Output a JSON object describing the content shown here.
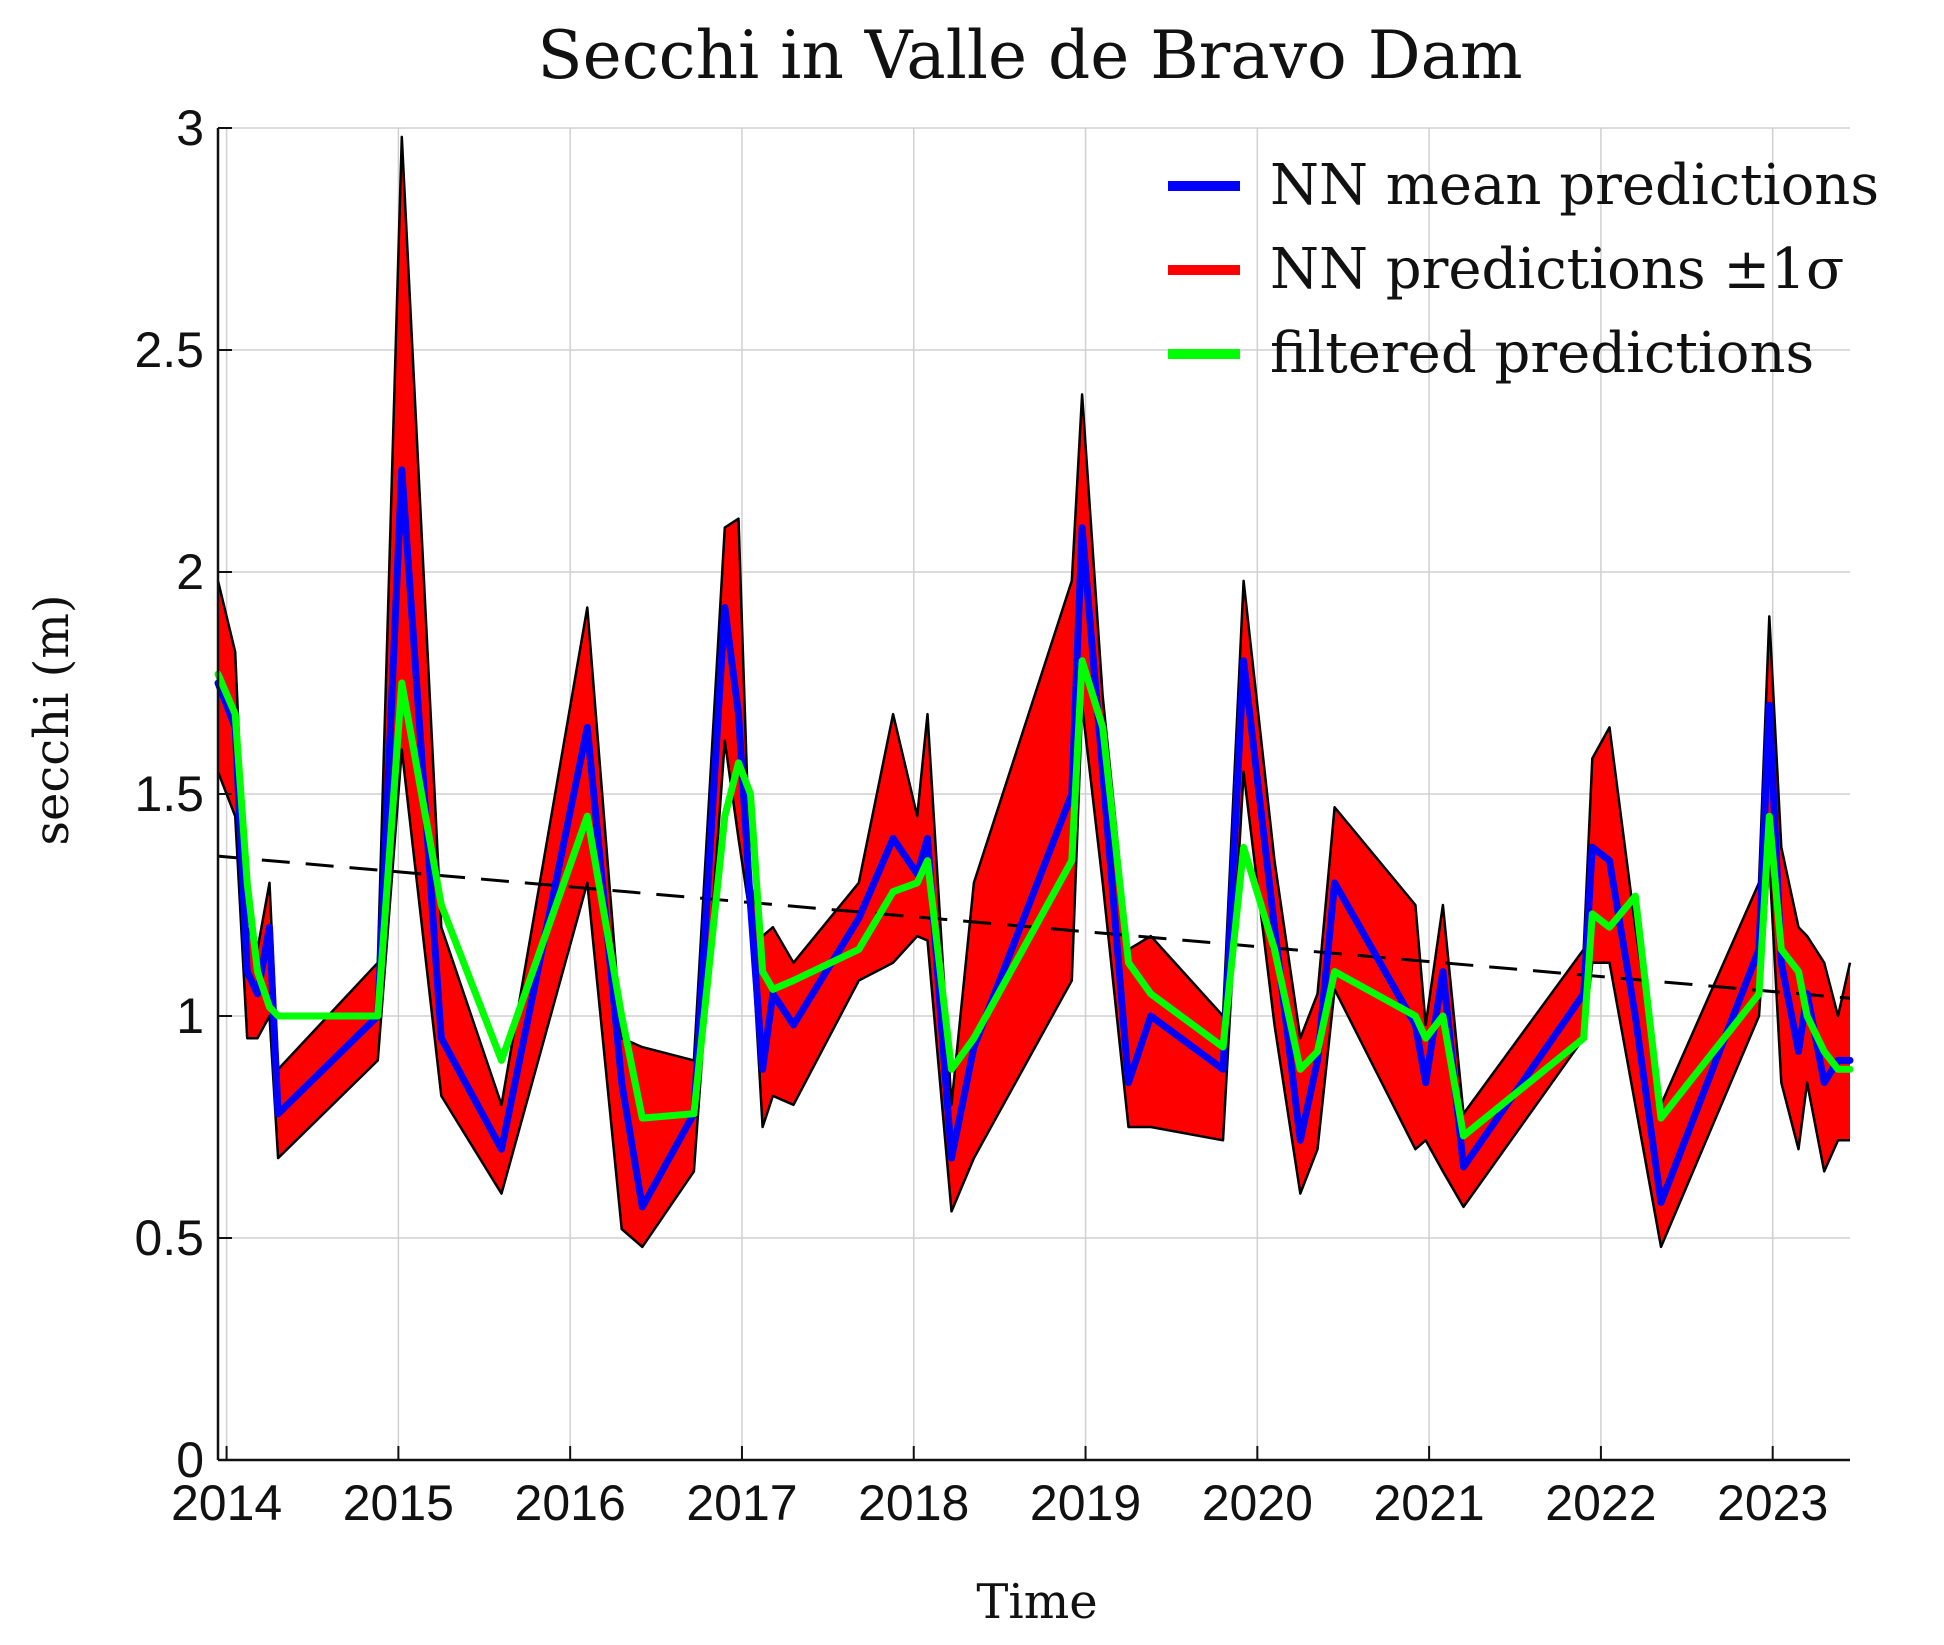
{
  "chart_data": {
    "type": "line",
    "title": "Secchi in Valle de Bravo Dam",
    "xlabel": "Time",
    "ylabel": "secchi (m)",
    "xlim": [
      2013.95,
      2023.45
    ],
    "ylim": [
      0,
      3
    ],
    "x_ticks": [
      2014,
      2015,
      2016,
      2017,
      2018,
      2019,
      2020,
      2021,
      2022,
      2023
    ],
    "x_tick_labels": [
      "2014",
      "2015",
      "2016",
      "2017",
      "2018",
      "2019",
      "2020",
      "2021",
      "2022",
      "2023"
    ],
    "y_ticks": [
      0,
      0.5,
      1,
      1.5,
      2,
      2.5,
      3
    ],
    "y_tick_labels": [
      "0",
      "0.5",
      "1",
      "1.5",
      "2",
      "2.5",
      "3"
    ],
    "grid": true,
    "legend_position": "top-right",
    "legend": [
      "NN mean predictions",
      "NN predictions ±1σ",
      "filtered predictions"
    ],
    "colors": {
      "mean": "#0000ff",
      "band": "#ff0000",
      "band_edge": "#000000",
      "filtered": "#00ff00",
      "trend": "#000000"
    },
    "x": [
      2013.95,
      2014.05,
      2014.12,
      2014.18,
      2014.25,
      2014.3,
      2014.88,
      2015.02,
      2015.25,
      2015.6,
      2016.1,
      2016.3,
      2016.42,
      2016.72,
      2016.9,
      2016.98,
      2017.05,
      2017.12,
      2017.18,
      2017.3,
      2017.68,
      2017.88,
      2018.02,
      2018.08,
      2018.22,
      2018.35,
      2018.92,
      2018.98,
      2019.1,
      2019.25,
      2019.38,
      2019.8,
      2019.92,
      2020.1,
      2020.25,
      2020.35,
      2020.45,
      2020.92,
      2020.98,
      2021.08,
      2021.2,
      2021.9,
      2021.95,
      2022.05,
      2022.2,
      2022.35,
      2022.92,
      2022.98,
      2023.05,
      2023.15,
      2023.2,
      2023.3,
      2023.38,
      2023.45
    ],
    "series": [
      {
        "name": "NN mean predictions",
        "values": [
          1.75,
          1.65,
          1.1,
          1.05,
          1.2,
          0.78,
          1.0,
          2.23,
          0.95,
          0.7,
          1.65,
          0.85,
          0.57,
          0.78,
          1.92,
          1.68,
          1.25,
          0.88,
          1.05,
          0.98,
          1.22,
          1.4,
          1.32,
          1.4,
          0.68,
          0.93,
          1.5,
          2.1,
          1.55,
          0.85,
          1.0,
          0.88,
          1.8,
          1.2,
          0.72,
          0.9,
          1.3,
          0.98,
          0.85,
          1.1,
          0.66,
          1.05,
          1.38,
          1.35,
          1.0,
          0.58,
          1.15,
          1.7,
          1.12,
          0.92,
          1.05,
          0.85,
          0.9,
          0.9
        ]
      },
      {
        "name": "NN predictions upper (+1σ)",
        "values": [
          1.98,
          1.82,
          1.2,
          1.15,
          1.3,
          0.88,
          1.12,
          2.98,
          1.2,
          0.8,
          1.92,
          0.95,
          0.93,
          0.9,
          2.1,
          2.12,
          1.3,
          1.18,
          1.2,
          1.12,
          1.3,
          1.68,
          1.45,
          1.68,
          0.8,
          1.3,
          1.98,
          2.4,
          1.72,
          1.15,
          1.18,
          1.0,
          1.98,
          1.35,
          0.95,
          1.05,
          1.47,
          1.25,
          0.98,
          1.25,
          0.78,
          1.15,
          1.58,
          1.65,
          1.2,
          0.8,
          1.3,
          1.9,
          1.38,
          1.2,
          1.18,
          1.12,
          1.0,
          1.12
        ]
      },
      {
        "name": "NN predictions lower (−1σ)",
        "values": [
          1.55,
          1.45,
          0.95,
          0.95,
          1.0,
          0.68,
          0.9,
          1.6,
          0.82,
          0.6,
          1.3,
          0.52,
          0.48,
          0.65,
          1.62,
          1.4,
          1.22,
          0.75,
          0.82,
          0.8,
          1.08,
          1.12,
          1.18,
          1.17,
          0.56,
          0.68,
          1.08,
          1.7,
          1.3,
          0.75,
          0.75,
          0.72,
          1.55,
          0.98,
          0.6,
          0.7,
          1.06,
          0.7,
          0.72,
          0.65,
          0.57,
          0.95,
          1.12,
          1.12,
          0.8,
          0.48,
          1.0,
          1.35,
          0.85,
          0.7,
          0.85,
          0.65,
          0.72,
          0.72
        ]
      },
      {
        "name": "filtered predictions",
        "values": [
          1.77,
          1.68,
          1.3,
          1.1,
          1.02,
          1.0,
          1.0,
          1.75,
          1.25,
          0.9,
          1.45,
          1.0,
          0.77,
          0.78,
          1.45,
          1.57,
          1.5,
          1.1,
          1.06,
          1.08,
          1.15,
          1.28,
          1.3,
          1.35,
          0.88,
          0.95,
          1.35,
          1.8,
          1.65,
          1.12,
          1.05,
          0.93,
          1.38,
          1.15,
          0.88,
          0.92,
          1.1,
          1.0,
          0.95,
          1.0,
          0.73,
          0.95,
          1.23,
          1.2,
          1.27,
          0.77,
          1.05,
          1.45,
          1.15,
          1.1,
          1.0,
          0.92,
          0.88,
          0.88
        ]
      }
    ],
    "trend_line": {
      "name": "linear trend",
      "x": [
        2013.95,
        2023.45
      ],
      "values": [
        1.36,
        1.04
      ]
    }
  }
}
